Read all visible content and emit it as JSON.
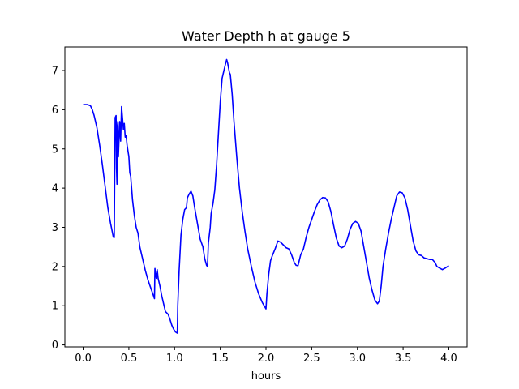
{
  "chart_data": {
    "type": "line",
    "title": "Water Depth h at gauge 5",
    "xlabel": "hours",
    "ylabel": "",
    "xlim": [
      -0.2,
      4.2
    ],
    "ylim": [
      -0.05,
      7.6
    ],
    "xticks": [
      "0.0",
      "0.5",
      "1.0",
      "1.5",
      "2.0",
      "2.5",
      "3.0",
      "3.5",
      "4.0"
    ],
    "xtick_values": [
      0,
      0.5,
      1.0,
      1.5,
      2.0,
      2.5,
      3.0,
      3.5,
      4.0
    ],
    "yticks": [
      "0",
      "1",
      "2",
      "3",
      "4",
      "5",
      "6",
      "7"
    ],
    "ytick_values": [
      0,
      1,
      2,
      3,
      4,
      5,
      6,
      7
    ],
    "grid": false,
    "series": [
      {
        "color": "#0000ff",
        "points": [
          [
            0.0,
            6.13
          ],
          [
            0.05,
            6.13
          ],
          [
            0.08,
            6.1
          ],
          [
            0.1,
            6.0
          ],
          [
            0.12,
            5.85
          ],
          [
            0.15,
            5.55
          ],
          [
            0.18,
            5.1
          ],
          [
            0.21,
            4.6
          ],
          [
            0.24,
            4.05
          ],
          [
            0.27,
            3.5
          ],
          [
            0.3,
            3.1
          ],
          [
            0.33,
            2.75
          ],
          [
            0.34,
            2.74
          ],
          [
            0.35,
            5.8
          ],
          [
            0.36,
            5.85
          ],
          [
            0.365,
            4.5
          ],
          [
            0.37,
            4.1
          ],
          [
            0.375,
            5.6
          ],
          [
            0.38,
            5.7
          ],
          [
            0.385,
            4.8
          ],
          [
            0.39,
            5.1
          ],
          [
            0.4,
            5.7
          ],
          [
            0.41,
            5.2
          ],
          [
            0.42,
            6.08
          ],
          [
            0.43,
            5.8
          ],
          [
            0.44,
            5.5
          ],
          [
            0.45,
            5.65
          ],
          [
            0.46,
            5.3
          ],
          [
            0.47,
            5.35
          ],
          [
            0.48,
            5.1
          ],
          [
            0.5,
            4.8
          ],
          [
            0.51,
            4.4
          ],
          [
            0.52,
            4.3
          ],
          [
            0.53,
            4.0
          ],
          [
            0.54,
            3.7
          ],
          [
            0.55,
            3.5
          ],
          [
            0.56,
            3.3
          ],
          [
            0.58,
            3.0
          ],
          [
            0.6,
            2.85
          ],
          [
            0.62,
            2.5
          ],
          [
            0.65,
            2.2
          ],
          [
            0.68,
            1.9
          ],
          [
            0.71,
            1.65
          ],
          [
            0.74,
            1.45
          ],
          [
            0.77,
            1.25
          ],
          [
            0.78,
            1.18
          ],
          [
            0.785,
            1.95
          ],
          [
            0.79,
            1.85
          ],
          [
            0.8,
            1.7
          ],
          [
            0.81,
            1.92
          ],
          [
            0.82,
            1.7
          ],
          [
            0.84,
            1.5
          ],
          [
            0.86,
            1.25
          ],
          [
            0.88,
            1.05
          ],
          [
            0.9,
            0.85
          ],
          [
            0.93,
            0.78
          ],
          [
            0.95,
            0.65
          ],
          [
            0.97,
            0.5
          ],
          [
            0.99,
            0.4
          ],
          [
            1.01,
            0.33
          ],
          [
            1.03,
            0.3
          ],
          [
            1.035,
            1.0
          ],
          [
            1.05,
            1.9
          ],
          [
            1.07,
            2.8
          ],
          [
            1.09,
            3.2
          ],
          [
            1.11,
            3.45
          ],
          [
            1.13,
            3.5
          ],
          [
            1.14,
            3.75
          ],
          [
            1.16,
            3.85
          ],
          [
            1.18,
            3.92
          ],
          [
            1.2,
            3.8
          ],
          [
            1.22,
            3.5
          ],
          [
            1.25,
            3.1
          ],
          [
            1.28,
            2.7
          ],
          [
            1.31,
            2.5
          ],
          [
            1.33,
            2.2
          ],
          [
            1.35,
            2.03
          ],
          [
            1.36,
            2.0
          ],
          [
            1.37,
            2.6
          ],
          [
            1.39,
            3.0
          ],
          [
            1.4,
            3.35
          ],
          [
            1.42,
            3.6
          ],
          [
            1.44,
            3.95
          ],
          [
            1.46,
            4.6
          ],
          [
            1.48,
            5.4
          ],
          [
            1.5,
            6.2
          ],
          [
            1.52,
            6.8
          ],
          [
            1.53,
            6.9
          ],
          [
            1.55,
            7.1
          ],
          [
            1.57,
            7.28
          ],
          [
            1.58,
            7.2
          ],
          [
            1.6,
            6.95
          ],
          [
            1.61,
            6.9
          ],
          [
            1.63,
            6.4
          ],
          [
            1.65,
            5.7
          ],
          [
            1.68,
            4.8
          ],
          [
            1.71,
            4.0
          ],
          [
            1.74,
            3.4
          ],
          [
            1.77,
            2.9
          ],
          [
            1.8,
            2.45
          ],
          [
            1.84,
            2.0
          ],
          [
            1.88,
            1.6
          ],
          [
            1.92,
            1.3
          ],
          [
            1.96,
            1.08
          ],
          [
            2.0,
            0.92
          ],
          [
            2.01,
            1.3
          ],
          [
            2.03,
            1.8
          ],
          [
            2.05,
            2.15
          ],
          [
            2.07,
            2.28
          ],
          [
            2.1,
            2.45
          ],
          [
            2.13,
            2.65
          ],
          [
            2.16,
            2.62
          ],
          [
            2.19,
            2.55
          ],
          [
            2.22,
            2.48
          ],
          [
            2.25,
            2.45
          ],
          [
            2.28,
            2.3
          ],
          [
            2.31,
            2.1
          ],
          [
            2.33,
            2.03
          ],
          [
            2.35,
            2.02
          ],
          [
            2.38,
            2.3
          ],
          [
            2.41,
            2.45
          ],
          [
            2.44,
            2.75
          ],
          [
            2.47,
            3.0
          ],
          [
            2.5,
            3.2
          ],
          [
            2.53,
            3.4
          ],
          [
            2.56,
            3.58
          ],
          [
            2.59,
            3.7
          ],
          [
            2.62,
            3.76
          ],
          [
            2.65,
            3.75
          ],
          [
            2.68,
            3.65
          ],
          [
            2.71,
            3.4
          ],
          [
            2.74,
            3.05
          ],
          [
            2.77,
            2.72
          ],
          [
            2.8,
            2.52
          ],
          [
            2.83,
            2.48
          ],
          [
            2.86,
            2.52
          ],
          [
            2.89,
            2.7
          ],
          [
            2.92,
            2.95
          ],
          [
            2.95,
            3.1
          ],
          [
            2.98,
            3.15
          ],
          [
            3.01,
            3.1
          ],
          [
            3.04,
            2.9
          ],
          [
            3.07,
            2.5
          ],
          [
            3.1,
            2.1
          ],
          [
            3.13,
            1.7
          ],
          [
            3.16,
            1.4
          ],
          [
            3.19,
            1.15
          ],
          [
            3.22,
            1.05
          ],
          [
            3.24,
            1.12
          ],
          [
            3.26,
            1.5
          ],
          [
            3.28,
            2.0
          ],
          [
            3.31,
            2.45
          ],
          [
            3.34,
            2.85
          ],
          [
            3.37,
            3.2
          ],
          [
            3.4,
            3.5
          ],
          [
            3.43,
            3.8
          ],
          [
            3.46,
            3.9
          ],
          [
            3.49,
            3.88
          ],
          [
            3.52,
            3.75
          ],
          [
            3.55,
            3.45
          ],
          [
            3.58,
            3.05
          ],
          [
            3.61,
            2.65
          ],
          [
            3.64,
            2.4
          ],
          [
            3.67,
            2.3
          ],
          [
            3.7,
            2.28
          ],
          [
            3.73,
            2.22
          ],
          [
            3.76,
            2.2
          ],
          [
            3.79,
            2.18
          ],
          [
            3.82,
            2.18
          ],
          [
            3.85,
            2.1
          ],
          [
            3.87,
            2.0
          ],
          [
            3.9,
            1.96
          ],
          [
            3.93,
            1.92
          ],
          [
            3.96,
            1.96
          ],
          [
            4.0,
            2.02
          ]
        ]
      }
    ]
  }
}
